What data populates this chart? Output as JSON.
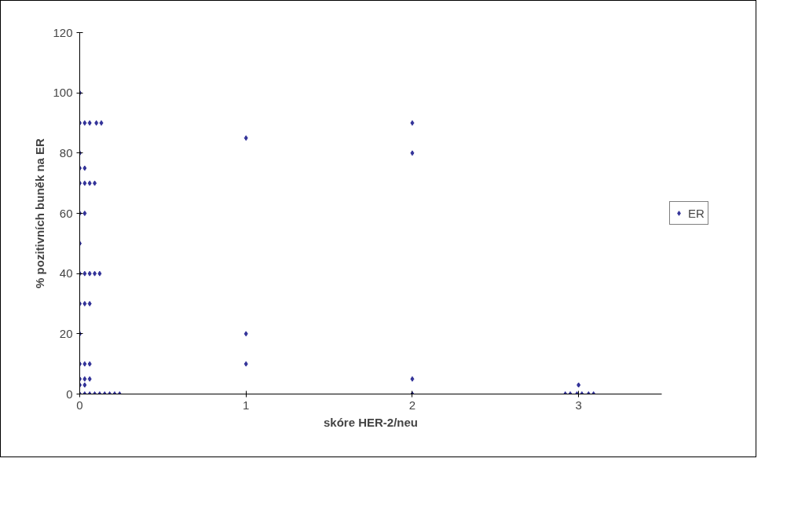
{
  "chart_data": {
    "type": "scatter",
    "xlabel": "skóre HER-2/neu",
    "ylabel": "% pozitivních buněk na ER",
    "xlim": [
      0,
      3.5
    ],
    "xticks": [
      0,
      1,
      2,
      3
    ],
    "ylim": [
      0,
      120
    ],
    "yticks": [
      0,
      20,
      40,
      60,
      80,
      100,
      120
    ],
    "grid": false,
    "legend": "right",
    "marker": "diamond",
    "series": [
      {
        "name": "ER",
        "color": "#333399",
        "x": [
          0,
          0,
          0.03,
          0.06,
          0.1,
          0.13,
          0,
          0,
          0.03,
          0,
          0.03,
          0.06,
          0.09,
          0,
          0.03,
          0,
          0,
          0.03,
          0.06,
          0.09,
          0.12,
          0,
          0.03,
          0.06,
          0,
          0,
          0.03,
          0.06,
          0,
          0.03,
          0.06,
          0,
          0.03,
          0,
          0.03,
          0.06,
          0.09,
          0.12,
          0.15,
          0.18,
          0.21,
          0.24,
          1,
          1,
          1,
          2,
          2,
          2,
          2,
          3,
          2.92,
          2.95,
          2.99,
          3.02,
          3.06,
          3.09
        ],
        "values": [
          100,
          90,
          90,
          90,
          90,
          90,
          80,
          75,
          75,
          70,
          70,
          70,
          70,
          60,
          60,
          50,
          40,
          40,
          40,
          40,
          40,
          30,
          30,
          30,
          20,
          10,
          10,
          10,
          5,
          5,
          5,
          3,
          3,
          0,
          0,
          0,
          0,
          0,
          0,
          0,
          0,
          0,
          85,
          20,
          10,
          90,
          80,
          5,
          0,
          3,
          0,
          0,
          0,
          0,
          0,
          0
        ]
      }
    ]
  }
}
